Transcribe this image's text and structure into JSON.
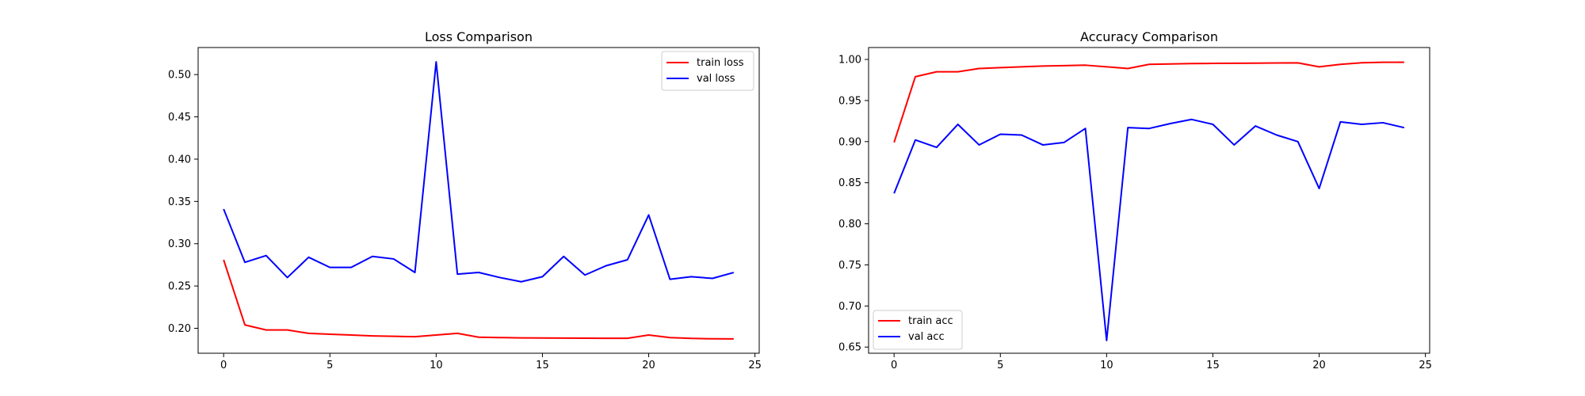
{
  "chart_data": [
    {
      "type": "line",
      "title": "Loss Comparison",
      "xlabel": "",
      "ylabel": "",
      "xlim": [
        -1.2,
        25.2
      ],
      "ylim": [
        0.1705,
        0.532
      ],
      "xticks": [
        0,
        5,
        10,
        15,
        20,
        25
      ],
      "xtick_labels": [
        "0",
        "5",
        "10",
        "15",
        "20",
        "25"
      ],
      "yticks": [
        0.2,
        0.25,
        0.3,
        0.35,
        0.4,
        0.45,
        0.5
      ],
      "ytick_labels": [
        "0.20",
        "0.25",
        "0.30",
        "0.35",
        "0.40",
        "0.45",
        "0.50"
      ],
      "grid": false,
      "legend_loc": "upper right",
      "x": [
        0,
        1,
        2,
        3,
        4,
        5,
        6,
        7,
        8,
        9,
        10,
        11,
        12,
        13,
        14,
        15,
        16,
        17,
        18,
        19,
        20,
        21,
        22,
        23,
        24
      ],
      "series": [
        {
          "name": "train loss",
          "color": "#ff0000",
          "values": [
            0.281,
            0.204,
            0.198,
            0.198,
            0.194,
            0.193,
            0.192,
            0.191,
            0.1905,
            0.19,
            0.192,
            0.194,
            0.1895,
            0.189,
            0.1887,
            0.1885,
            0.1884,
            0.1883,
            0.1882,
            0.1882,
            0.192,
            0.189,
            0.188,
            0.1876,
            0.1875
          ]
        },
        {
          "name": "val loss",
          "color": "#0000ff",
          "values": [
            0.341,
            0.278,
            0.286,
            0.26,
            0.284,
            0.272,
            0.272,
            0.285,
            0.282,
            0.266,
            0.515,
            0.264,
            0.266,
            0.26,
            0.255,
            0.261,
            0.285,
            0.263,
            0.274,
            0.281,
            0.334,
            0.258,
            0.261,
            0.259,
            0.266
          ]
        }
      ]
    },
    {
      "type": "line",
      "title": "Accuracy Comparison",
      "xlabel": "",
      "ylabel": "",
      "xlim": [
        -1.2,
        25.2
      ],
      "ylim": [
        0.6425,
        1.0145
      ],
      "xticks": [
        0,
        5,
        10,
        15,
        20,
        25
      ],
      "xtick_labels": [
        "0",
        "5",
        "10",
        "15",
        "20",
        "25"
      ],
      "yticks": [
        0.65,
        0.7,
        0.75,
        0.8,
        0.85,
        0.9,
        0.95,
        1.0
      ],
      "ytick_labels": [
        "0.65",
        "0.70",
        "0.75",
        "0.80",
        "0.85",
        "0.90",
        "0.95",
        "1.00"
      ],
      "grid": false,
      "legend_loc": "lower left",
      "x": [
        0,
        1,
        2,
        3,
        4,
        5,
        6,
        7,
        8,
        9,
        10,
        11,
        12,
        13,
        14,
        15,
        16,
        17,
        18,
        19,
        20,
        21,
        22,
        23,
        24
      ],
      "series": [
        {
          "name": "train acc",
          "color": "#ff0000",
          "values": [
            0.899,
            0.979,
            0.985,
            0.985,
            0.989,
            0.99,
            0.991,
            0.992,
            0.9925,
            0.993,
            0.991,
            0.989,
            0.994,
            0.9945,
            0.995,
            0.9952,
            0.9953,
            0.9955,
            0.9957,
            0.9958,
            0.991,
            0.994,
            0.996,
            0.9965,
            0.9965
          ]
        },
        {
          "name": "val acc",
          "color": "#0000ff",
          "values": [
            0.837,
            0.902,
            0.893,
            0.921,
            0.896,
            0.909,
            0.908,
            0.896,
            0.899,
            0.916,
            0.658,
            0.917,
            0.916,
            0.922,
            0.927,
            0.921,
            0.896,
            0.919,
            0.908,
            0.9,
            0.843,
            0.924,
            0.921,
            0.923,
            0.917
          ]
        }
      ]
    }
  ]
}
